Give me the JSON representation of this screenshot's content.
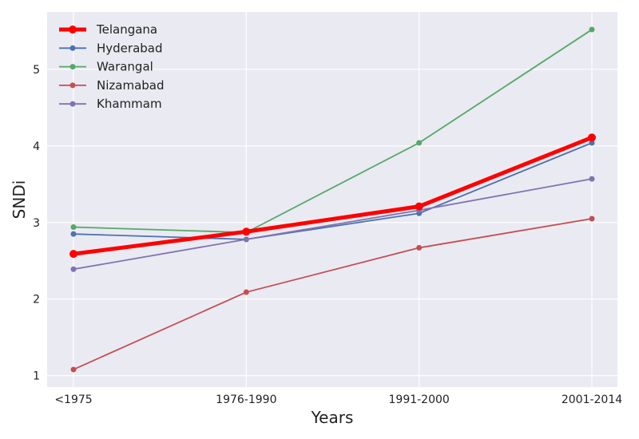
{
  "chart_data": {
    "type": "line",
    "xlabel": "Years",
    "ylabel": "SNDi",
    "categories": [
      "<1975",
      "1976-1990",
      "1991-2000",
      "2001-2014"
    ],
    "ylim": [
      0.85,
      5.75
    ],
    "yticks": [
      1,
      2,
      3,
      4,
      5
    ],
    "grid": true,
    "legend_position": "top-left",
    "series": [
      {
        "name": "Telangana",
        "color": "#ff0000",
        "emphasis": true,
        "values": [
          2.59,
          2.88,
          3.21,
          4.11
        ]
      },
      {
        "name": "Hyderabad",
        "color": "#4c72b0",
        "values": [
          2.85,
          2.78,
          3.12,
          4.04
        ]
      },
      {
        "name": "Warangal",
        "color": "#55a868",
        "values": [
          2.94,
          2.87,
          4.04,
          5.52
        ]
      },
      {
        "name": "Nizamabad",
        "color": "#c44e52",
        "values": [
          1.08,
          2.09,
          2.67,
          3.05
        ]
      },
      {
        "name": "Khammam",
        "color": "#8172b2",
        "values": [
          2.39,
          2.78,
          3.16,
          3.57
        ]
      }
    ]
  }
}
